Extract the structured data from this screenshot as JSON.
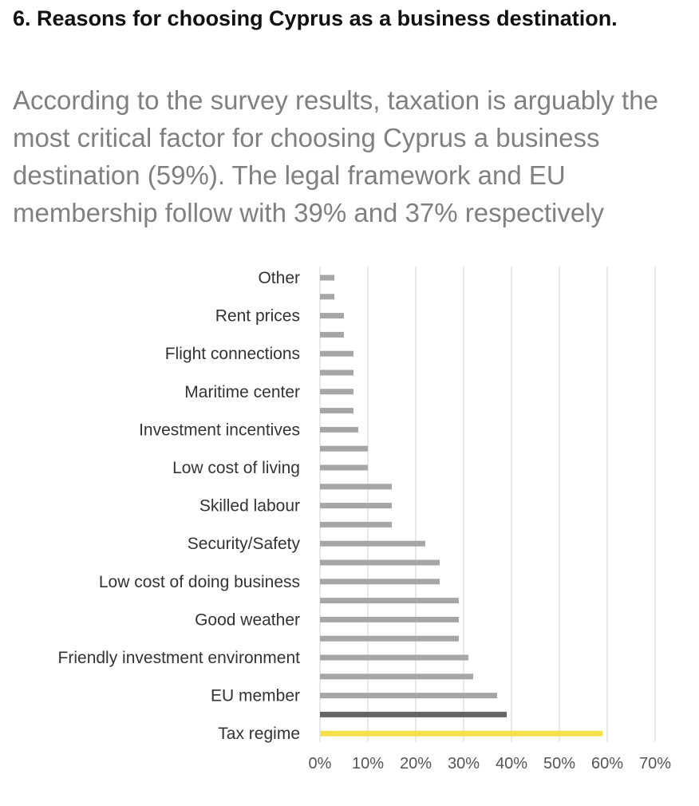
{
  "heading": "6. Reasons for choosing Cyprus as a business destination.",
  "summary": "According to the survey results, taxation is arguably the most critical factor for choosing Cyprus a business destination (59%). The legal framework and EU membership follow with 39% and 37% respectively",
  "colors": {
    "default_bar": "#a6a6a6",
    "legal_bar": "#666666",
    "tax_bar": "#f5e04a",
    "grid": "#d9d9d9"
  },
  "chart_data": {
    "type": "bar",
    "orientation": "horizontal",
    "title": "",
    "xlim": [
      0,
      70
    ],
    "x_ticks": [
      "0%",
      "10%",
      "20%",
      "30%",
      "40%",
      "50%",
      "60%",
      "70%"
    ],
    "grid": true,
    "labeled_categories": [
      "Other",
      "Rent prices",
      "Flight connections",
      "Maritime center",
      "Investment incentives",
      "Low cost of living",
      "Skilled labour",
      "Security/Safety",
      "Low cost of doing business",
      "Good weather",
      "Friendly investment environment",
      "EU member",
      "Tax regime"
    ],
    "bars": [
      {
        "label": "Other",
        "value": 3
      },
      {
        "label": "",
        "value": 3
      },
      {
        "label": "Rent prices",
        "value": 5
      },
      {
        "label": "",
        "value": 5
      },
      {
        "label": "Flight connections",
        "value": 7
      },
      {
        "label": "",
        "value": 7
      },
      {
        "label": "Maritime center",
        "value": 7
      },
      {
        "label": "",
        "value": 7
      },
      {
        "label": "Investment incentives",
        "value": 8
      },
      {
        "label": "",
        "value": 10
      },
      {
        "label": "Low cost of living",
        "value": 10
      },
      {
        "label": "",
        "value": 15
      },
      {
        "label": "Skilled labour",
        "value": 15
      },
      {
        "label": "",
        "value": 15
      },
      {
        "label": "Security/Safety",
        "value": 22
      },
      {
        "label": "",
        "value": 25
      },
      {
        "label": "Low cost of doing business",
        "value": 25
      },
      {
        "label": "",
        "value": 29
      },
      {
        "label": "Good weather",
        "value": 29
      },
      {
        "label": "",
        "value": 29
      },
      {
        "label": "Friendly investment environment",
        "value": 31
      },
      {
        "label": "",
        "value": 32
      },
      {
        "label": "EU member",
        "value": 37
      },
      {
        "label": "",
        "value": 39,
        "highlight": "legal"
      },
      {
        "label": "Tax regime",
        "value": 59,
        "highlight": "tax"
      }
    ]
  }
}
